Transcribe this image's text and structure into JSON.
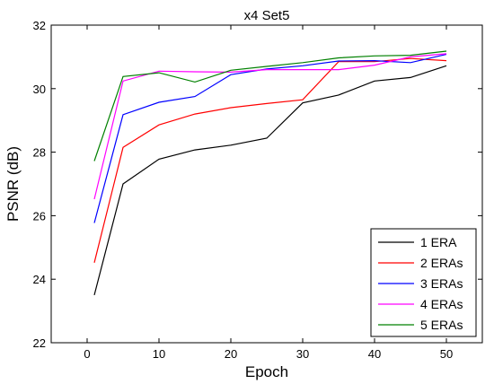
{
  "chart_data": {
    "type": "line",
    "title": "x4 Set5",
    "xlabel": "Epoch",
    "ylabel": "PSNR (dB)",
    "xlim": [
      -5,
      55
    ],
    "ylim": [
      22,
      32
    ],
    "xticks": [
      0,
      10,
      20,
      30,
      40,
      50
    ],
    "yticks": [
      22,
      24,
      26,
      28,
      30,
      32
    ],
    "legend_position": "bottom-right",
    "grid": false,
    "series": [
      {
        "name": "1 ERA",
        "color": "#000000",
        "x": [
          1,
          5,
          10,
          15,
          20,
          25,
          30,
          35,
          40,
          45,
          50
        ],
        "y": [
          23.5,
          27.0,
          27.78,
          28.07,
          28.22,
          28.44,
          29.55,
          29.8,
          30.24,
          30.35,
          30.72
        ]
      },
      {
        "name": "2 ERAs",
        "color": "#ff0000",
        "x": [
          1,
          5,
          10,
          15,
          20,
          25,
          30,
          35,
          40,
          45,
          50
        ],
        "y": [
          24.52,
          28.15,
          28.86,
          29.2,
          29.4,
          29.53,
          29.65,
          30.85,
          30.85,
          30.95,
          30.88
        ]
      },
      {
        "name": "3 ERAs",
        "color": "#0000ff",
        "x": [
          1,
          5,
          10,
          15,
          20,
          25,
          30,
          35,
          40,
          45,
          50
        ],
        "y": [
          25.77,
          29.18,
          29.57,
          29.75,
          30.44,
          30.62,
          30.72,
          30.87,
          30.88,
          30.82,
          31.08
        ]
      },
      {
        "name": "4 ERAs",
        "color": "#ff00ff",
        "x": [
          1,
          5,
          10,
          15,
          20,
          25,
          30,
          35,
          40,
          45,
          50
        ],
        "y": [
          26.52,
          30.24,
          30.55,
          30.53,
          30.52,
          30.6,
          30.6,
          30.6,
          30.74,
          31.0,
          31.1
        ]
      },
      {
        "name": "5 ERAs",
        "color": "#008000",
        "x": [
          1,
          5,
          10,
          15,
          20,
          25,
          30,
          35,
          40,
          45,
          50
        ],
        "y": [
          27.72,
          30.38,
          30.5,
          30.21,
          30.58,
          30.7,
          30.82,
          30.97,
          31.03,
          31.05,
          31.18
        ]
      }
    ]
  }
}
